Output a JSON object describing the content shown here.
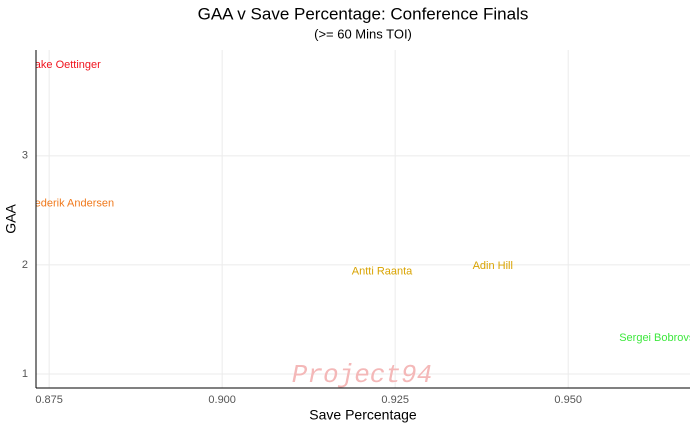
{
  "chart_data": {
    "type": "scatter",
    "title": "GAA v Save Percentage: Conference Finals",
    "subtitle": "(>= 60 Mins TOI)",
    "x_label": "Save Percentage",
    "y_label": "GAA",
    "watermark": "Project94",
    "series": [
      {
        "name": "Jake Oettinger",
        "color": "#f0141e",
        "x": [
          0.8773
        ],
        "values": [
          3.83
        ]
      },
      {
        "name": "Frederik Andersen",
        "color": "#f07a1e",
        "x": [
          0.8779
        ],
        "values": [
          2.56
        ]
      },
      {
        "name": "Antti Raanta",
        "color": "#d9a300",
        "x": [
          0.9231
        ],
        "values": [
          1.94
        ]
      },
      {
        "name": "Adin Hill",
        "color": "#d9a300",
        "x": [
          0.9391
        ],
        "values": [
          1.99
        ]
      },
      {
        "name": "Sergei Bobrovsky",
        "color": "#3ee83e",
        "x": [
          0.9636
        ],
        "values": [
          1.33
        ]
      }
    ],
    "xlim": [
      0.8731,
      0.9676
    ],
    "ylim": [
      0.872,
      3.97
    ],
    "xticks": [
      0.875,
      {
        "value": 0.9,
        "label": "0.900"
      },
      0.925,
      {
        "value": 0.95,
        "label": "0.950"
      }
    ],
    "yticks": [
      1,
      2,
      3
    ],
    "grid": true
  }
}
